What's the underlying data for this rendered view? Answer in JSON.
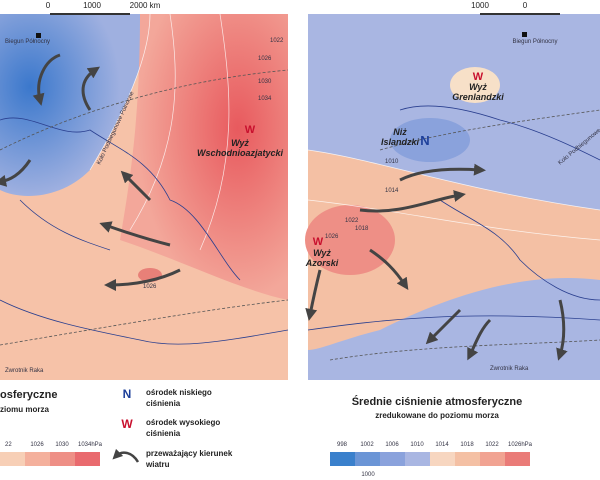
{
  "left_map": {
    "scale": [
      "0",
      "1000",
      "2000 km"
    ],
    "pole": "Biegun Północny",
    "high_symbol": "W",
    "high_name": [
      "Wyż",
      "Wschodnioazjatycki"
    ],
    "arctic_circle": "Koło Podbiegunowe Północne",
    "tropic": "Zwrotnik Raka",
    "isobars": [
      "1022",
      "1026",
      "1030",
      "1034",
      "1026"
    ],
    "legend_title": [
      "osferyczne",
      "ziomu morza"
    ],
    "legend_ticks": [
      "22",
      "1026",
      "1030",
      "1034hPa"
    ]
  },
  "key": {
    "low": {
      "symbol": "N",
      "text": [
        "ośrodek niskiego",
        "ciśnienia"
      ]
    },
    "high": {
      "symbol": "W",
      "text": [
        "ośrodek wysokiego",
        "ciśnienia"
      ]
    },
    "wind": {
      "text": [
        "przeważający kierunek",
        "wiatru"
      ]
    }
  },
  "right_map": {
    "scale": [
      "1000",
      "0"
    ],
    "pole": "Biegun Północny",
    "greenland": {
      "symbol": "W",
      "name": [
        "Wyż",
        "Grenlandzki"
      ]
    },
    "iceland": {
      "symbol": "N",
      "name": [
        "Niż",
        "Islandzki"
      ]
    },
    "azores": {
      "symbol": "W",
      "name": [
        "Wyż",
        "Azorski"
      ]
    },
    "arctic_circle": "Koło Podbiegunowe Północne",
    "tropic": "Zwrotnik Raka",
    "isobars": [
      "1010",
      "1014",
      "1018",
      "1022",
      "1026"
    ],
    "legend_title": [
      "Średnie ciśnienie atmosferyczne",
      "zredukowane do poziomu morza"
    ],
    "legend_ticks": [
      "998",
      "1002",
      "1006",
      "1010",
      "1014",
      "1018",
      "1022",
      "1026hPa"
    ],
    "legend_extra": "1000"
  }
}
